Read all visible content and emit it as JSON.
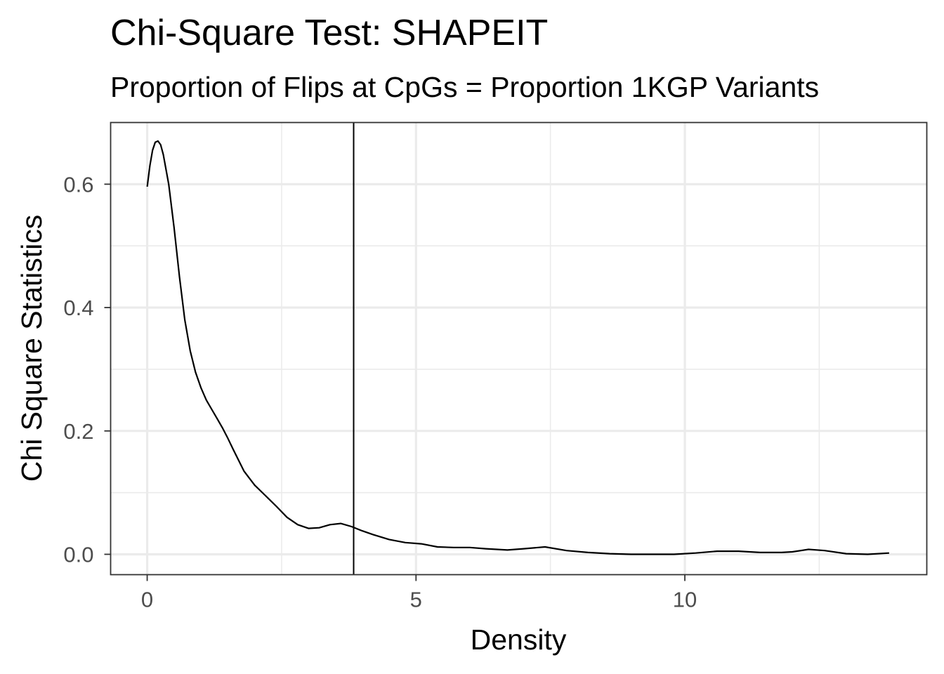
{
  "chart_data": {
    "type": "line",
    "title": "Chi-Square Test: SHAPEIT",
    "subtitle": "Proportion of Flips at CpGs = Proportion 1KGP Variants",
    "xlabel": "Density",
    "ylabel": "Chi Square Statistics",
    "xlim": [
      -0.68,
      14.5
    ],
    "ylim": [
      -0.033,
      0.7
    ],
    "x_ticks": [
      0,
      5,
      10
    ],
    "x_tick_labels": [
      "0",
      "5",
      "10"
    ],
    "y_ticks": [
      0.0,
      0.2,
      0.4,
      0.6
    ],
    "y_tick_labels": [
      "0.0",
      "0.2",
      "0.4",
      "0.6"
    ],
    "grid": true,
    "theme": "bw",
    "vline": {
      "x": 3.84
    },
    "series": [
      {
        "x": [
          0.0,
          0.05,
          0.1,
          0.15,
          0.2,
          0.25,
          0.3,
          0.4,
          0.5,
          0.6,
          0.7,
          0.8,
          0.9,
          1.0,
          1.1,
          1.2,
          1.3,
          1.4,
          1.5,
          1.6,
          1.8,
          2.0,
          2.2,
          2.4,
          2.6,
          2.8,
          3.0,
          3.2,
          3.4,
          3.6,
          3.8,
          4.0,
          4.2,
          4.5,
          4.8,
          5.1,
          5.4,
          5.7,
          6.0,
          6.3,
          6.7,
          7.0,
          7.4,
          7.8,
          8.2,
          8.6,
          9.0,
          9.4,
          9.8,
          10.2,
          10.6,
          11.0,
          11.4,
          11.8,
          12.0,
          12.3,
          12.6,
          13.0,
          13.4,
          13.8
        ],
        "y": [
          0.596,
          0.63,
          0.655,
          0.668,
          0.67,
          0.664,
          0.648,
          0.6,
          0.53,
          0.45,
          0.38,
          0.33,
          0.295,
          0.27,
          0.25,
          0.235,
          0.22,
          0.205,
          0.188,
          0.17,
          0.135,
          0.112,
          0.095,
          0.078,
          0.06,
          0.048,
          0.042,
          0.043,
          0.048,
          0.05,
          0.045,
          0.038,
          0.032,
          0.024,
          0.019,
          0.017,
          0.012,
          0.011,
          0.011,
          0.009,
          0.007,
          0.009,
          0.012,
          0.006,
          0.003,
          0.001,
          0.0,
          0.0,
          0.0,
          0.002,
          0.005,
          0.005,
          0.003,
          0.003,
          0.004,
          0.008,
          0.006,
          0.001,
          0.0,
          0.002
        ]
      }
    ]
  }
}
